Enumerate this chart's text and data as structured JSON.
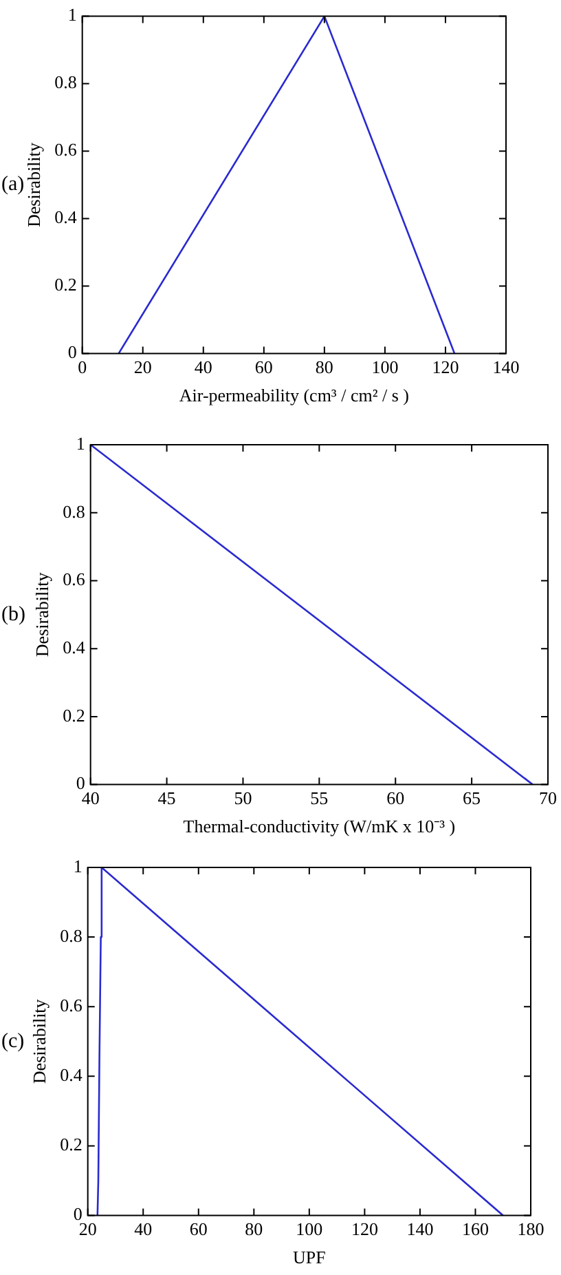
{
  "chart_data": [
    {
      "type": "line",
      "xlabel": "Air-permeability (cm³ / cm² / s )",
      "ylabel": "Desirability",
      "annotations": [
        "(a)"
      ],
      "marker": "none",
      "series": [
        {
          "color": "#2a2ad0",
          "x": [
            12,
            80,
            123
          ],
          "values": [
            0,
            1,
            0
          ]
        }
      ],
      "xlim": [
        0,
        140
      ],
      "xticks": [
        0,
        20,
        40,
        60,
        80,
        100,
        120,
        140
      ],
      "ylim": [
        0,
        1
      ],
      "yticks": [
        0,
        0.2,
        0.4,
        0.6,
        0.8,
        1
      ]
    },
    {
      "type": "line",
      "xlabel": "Thermal-conductivity (W/mK x 10⁻³ )",
      "ylabel": "Desirability",
      "annotations": [
        "(b)"
      ],
      "marker": "none",
      "series": [
        {
          "color": "#2a2ad0",
          "x": [
            40,
            69
          ],
          "values": [
            1,
            0
          ]
        }
      ],
      "xlim": [
        40,
        70
      ],
      "xticks": [
        40,
        45,
        50,
        55,
        60,
        65,
        70
      ],
      "ylim": [
        0,
        1
      ],
      "yticks": [
        0,
        0.2,
        0.4,
        0.6,
        0.8,
        1
      ]
    },
    {
      "type": "line",
      "xlabel": "UPF",
      "ylabel": "Desirability",
      "annotations": [
        "(c)"
      ],
      "marker": "none",
      "series": [
        {
          "color": "#2a2ad0",
          "x": [
            23.5,
            23.8,
            24.2,
            24.7,
            25,
            170
          ],
          "values": [
            0,
            0.1,
            0.45,
            0.8,
            1,
            0
          ]
        }
      ],
      "xlim": [
        20,
        180
      ],
      "xticks": [
        20,
        40,
        60,
        80,
        100,
        120,
        140,
        160,
        180
      ],
      "ylim": [
        0,
        1
      ],
      "yticks": [
        0,
        0.2,
        0.4,
        0.6,
        0.8,
        1
      ]
    }
  ]
}
